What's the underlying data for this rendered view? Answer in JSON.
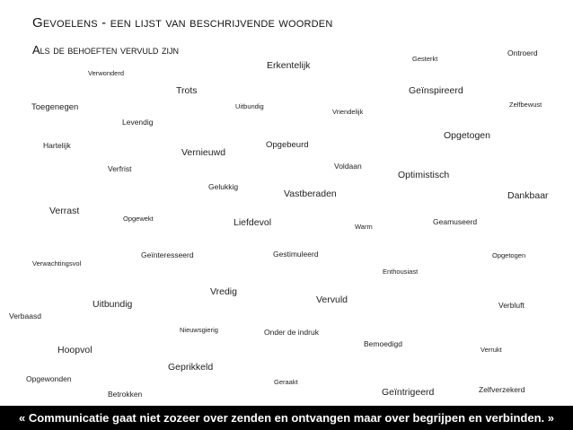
{
  "header": {
    "title": "Gevoelens - een lijst van beschrijvende woorden",
    "subtitle": "Als de behoeften vervuld zijn"
  },
  "words": [
    "Verwonderd",
    "Erkentelijk",
    "Gesterkt",
    "Ontroerd",
    "Trots",
    "Geïnspireerd",
    "Toegenegen",
    "Uitbundig",
    "Vriendelijk",
    "Zelfbewust",
    "Levendig",
    "Opgetogen",
    "Hartelijk",
    "Vernieuwd",
    "Opgebeurd",
    "Verfrist",
    "Voldaan",
    "Optimistisch",
    "Gelukkig",
    "Vastberaden",
    "Dankbaar",
    "Verrast",
    "Opgewekt",
    "Liefdevol",
    "Warm",
    "Geamuseerd",
    "Geïnteresseerd",
    "Gestimuleerd",
    "Opgetogen",
    "Verwachtingsvol",
    "Enthousiast",
    "Vredig",
    "Uitbundig",
    "Vervuld",
    "Verbluft",
    "Verbaasd",
    "Nieuwsgierig",
    "Onder de indruk",
    "Hoopvol",
    "Bemoedigd",
    "Verrukt",
    "Geprikkeld",
    "Opgewonden",
    "Geraakt",
    "Zelfverzekerd",
    "Betrokken",
    "Geïntrigeerd"
  ],
  "banner": {
    "quote": "« Communicatie gaat niet zozeer over zenden en ontvangen maar over begrijpen en verbinden. »"
  }
}
